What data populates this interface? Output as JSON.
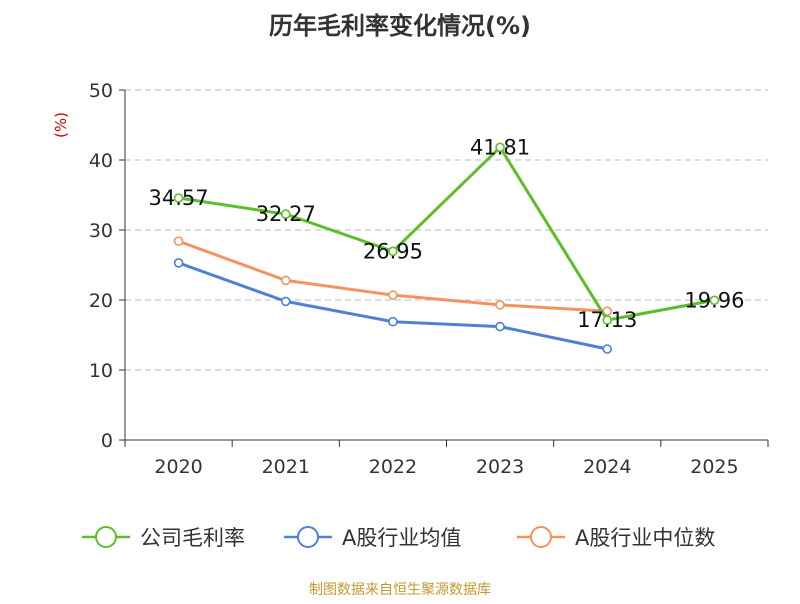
{
  "chart_data": {
    "type": "line",
    "title": "历年毛利率变化情况(%)",
    "ylabel": "(%)",
    "xlabel": "",
    "categories": [
      "2020",
      "2021",
      "2022",
      "2023",
      "2024",
      "2025"
    ],
    "ylim": [
      0,
      50
    ],
    "yticks": [
      0,
      10,
      20,
      30,
      40,
      50
    ],
    "grid": true,
    "legend_position": "bottom",
    "series": [
      {
        "name": "公司毛利率",
        "color": "#5cbf2a",
        "show_labels": true,
        "values": [
          34.57,
          32.27,
          26.95,
          41.81,
          17.13,
          19.96
        ],
        "labels": [
          "34.57",
          "32.27",
          "26.95",
          "41.81",
          "17.13",
          "19.96"
        ]
      },
      {
        "name": "A股行业均值",
        "color": "#4e80d8",
        "show_labels": false,
        "values": [
          25.3,
          19.8,
          16.9,
          16.2,
          13.0,
          null
        ]
      },
      {
        "name": "A股行业中位数",
        "color": "#f59260",
        "show_labels": false,
        "values": [
          28.4,
          22.8,
          20.7,
          19.3,
          18.4,
          null
        ]
      }
    ],
    "source": "制图数据来自恒生聚源数据库",
    "colors": {
      "axis": "#333333",
      "grid": "#bbbbbb",
      "ylabel": "#cc0000",
      "source": "#c49a2c"
    }
  }
}
